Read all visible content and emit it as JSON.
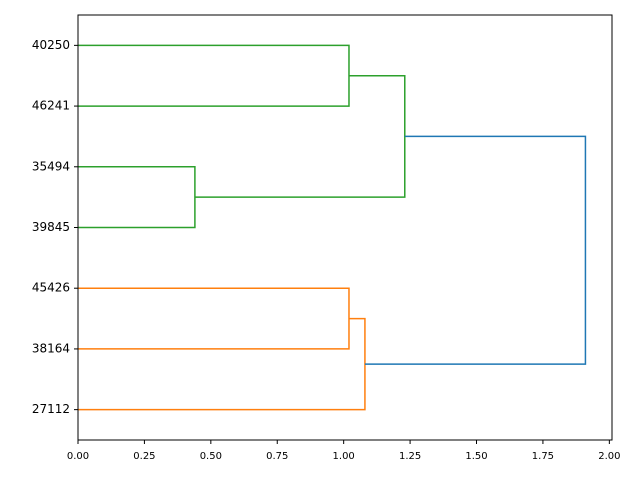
{
  "chart_data": {
    "type": "dendrogram",
    "orientation": "left",
    "labels": [
      "40250",
      "46241",
      "35494",
      "39845",
      "45426",
      "38164",
      "27112"
    ],
    "links": [
      {
        "children": [
          0,
          1
        ],
        "height": 1.02,
        "color": "#2ca02c"
      },
      {
        "children": [
          2,
          3
        ],
        "height": 0.44,
        "color": "#2ca02c"
      },
      {
        "children": [
          4,
          5
        ],
        "height": 1.02,
        "color": "#ff7f0e"
      },
      {
        "children": [
          9,
          6
        ],
        "height": 1.08,
        "color": "#ff7f0e"
      },
      {
        "children": [
          7,
          8
        ],
        "height": 1.23,
        "color": "#2ca02c"
      },
      {
        "children": [
          11,
          10
        ],
        "height": 1.91,
        "color": "#1f77b4"
      }
    ],
    "xlim": [
      0,
      2.01
    ],
    "xticks": [
      {
        "value": 0,
        "label": "0.00"
      },
      {
        "value": 0.25,
        "label": "0.25"
      },
      {
        "value": 0.5,
        "label": "0.50"
      },
      {
        "value": 0.75,
        "label": "0.75"
      },
      {
        "value": 1,
        "label": "1.00"
      },
      {
        "value": 1.25,
        "label": "1.25"
      },
      {
        "value": 1.5,
        "label": "1.50"
      },
      {
        "value": 1.75,
        "label": "1.75"
      },
      {
        "value": 2,
        "label": "2.00"
      }
    ],
    "grid": false
  }
}
